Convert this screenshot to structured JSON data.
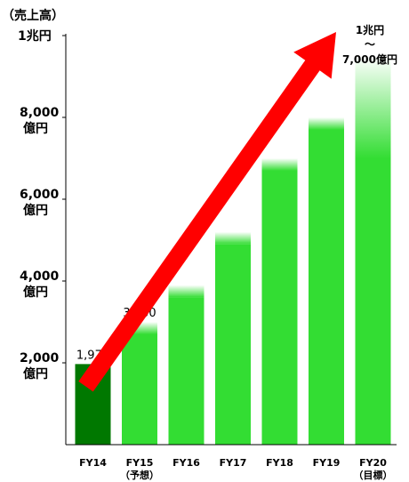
{
  "chart_data": {
    "type": "bar",
    "ylabel": "（売上高）",
    "ylim": [
      0,
      10000
    ],
    "y_ticks": [
      {
        "value": 2000,
        "line1": "2,000",
        "line2": "億円"
      },
      {
        "value": 4000,
        "line1": "4,000",
        "line2": "億円"
      },
      {
        "value": 6000,
        "line1": "6,000",
        "line2": "億円"
      },
      {
        "value": 8000,
        "line1": "8,000",
        "line2": "億円"
      },
      {
        "value": 10000,
        "line1": "1兆円",
        "line2": ""
      }
    ],
    "categories": [
      {
        "label": "FY14",
        "sublabel": ""
      },
      {
        "label": "FY15",
        "sublabel": "（予想）"
      },
      {
        "label": "FY16",
        "sublabel": ""
      },
      {
        "label": "FY17",
        "sublabel": ""
      },
      {
        "label": "FY18",
        "sublabel": ""
      },
      {
        "label": "FY19",
        "sublabel": ""
      },
      {
        "label": "FY20",
        "sublabel": "（目標）"
      }
    ],
    "values": [
      1970,
      3000,
      3900,
      5200,
      7000,
      8000,
      9500
    ],
    "value_range_low": [
      null,
      null,
      null,
      null,
      null,
      null,
      7000
    ],
    "data_labels": [
      "1,970",
      "3,000",
      "",
      "",
      "",
      "",
      ""
    ],
    "target_annotation": [
      "1兆円",
      "～",
      "7,000億円"
    ],
    "trend_arrow": true,
    "grid": false,
    "colors": {
      "actual": "#007800",
      "forecast": "#33dd33",
      "fade": "#ffffff",
      "arrow": "#ff0000",
      "axis": "#000000"
    }
  }
}
